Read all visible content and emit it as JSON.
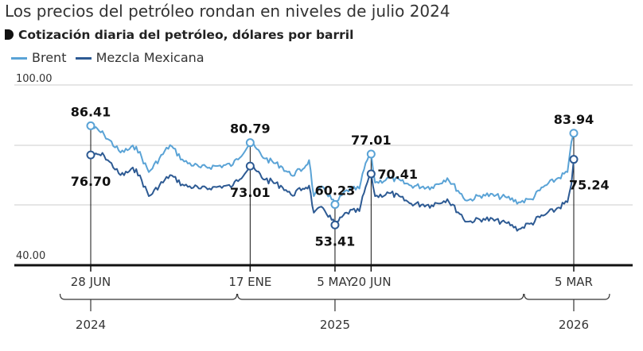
{
  "title": "Los precios del petróleo rondan en niveles de julio 2024",
  "subtitle": "Cotización diaria del petróleo, dólares por barril",
  "chart_data": {
    "type": "line",
    "title": "Los precios del petróleo rondan en niveles de julio 2024",
    "subtitle": "Cotización diaria del petróleo, dólares por barril",
    "ylabel": "dólares por barril",
    "ylim": [
      40,
      100
    ],
    "y_ticks": [
      {
        "value": 40,
        "label": "40.00"
      },
      {
        "value": 100,
        "label": "100.00"
      }
    ],
    "grid": true,
    "colors": {
      "brent": "#5aa3d6",
      "mezcla": "#2d5a93",
      "axis": "#111111",
      "grid": "#cccccc"
    },
    "x_domain": [
      "2024-06-28",
      "2026-03-05"
    ],
    "legend": [
      {
        "name": "Brent",
        "color": "#5aa3d6"
      },
      {
        "name": "Mezcla Mexicana",
        "color": "#2d5a93"
      }
    ],
    "series": [
      {
        "name": "Brent",
        "color": "#5aa3d6",
        "points": [
          [
            "2024-06-28",
            86.41
          ],
          [
            "2024-07-15",
            83.5
          ],
          [
            "2024-08-05",
            77.5
          ],
          [
            "2024-08-25",
            79.5
          ],
          [
            "2024-09-10",
            71.0
          ],
          [
            "2024-10-07",
            80.0
          ],
          [
            "2024-10-25",
            74.5
          ],
          [
            "2024-11-15",
            72.5
          ],
          [
            "2024-12-05",
            73.0
          ],
          [
            "2024-12-26",
            73.5
          ],
          [
            "2025-01-17",
            80.79
          ],
          [
            "2025-02-05",
            75.5
          ],
          [
            "2025-02-25",
            73.0
          ],
          [
            "2025-03-10",
            70.0
          ],
          [
            "2025-03-25",
            72.0
          ],
          [
            "2025-04-02",
            75.0
          ],
          [
            "2025-04-08",
            63.0
          ],
          [
            "2025-04-20",
            66.0
          ],
          [
            "2025-05-05",
            60.23
          ],
          [
            "2025-05-20",
            65.0
          ],
          [
            "2025-06-05",
            65.5
          ],
          [
            "2025-06-13",
            74.0
          ],
          [
            "2025-06-20",
            77.01
          ],
          [
            "2025-06-25",
            67.5
          ],
          [
            "2025-07-15",
            69.0
          ],
          [
            "2025-08-10",
            66.5
          ],
          [
            "2025-09-05",
            66.0
          ],
          [
            "2025-09-25",
            69.0
          ],
          [
            "2025-10-20",
            61.5
          ],
          [
            "2025-11-10",
            63.5
          ],
          [
            "2025-12-10",
            62.5
          ],
          [
            "2025-12-25",
            61.0
          ],
          [
            "2026-01-10",
            62.0
          ],
          [
            "2026-01-25",
            66.0
          ],
          [
            "2026-02-10",
            68.5
          ],
          [
            "2026-02-25",
            71.0
          ],
          [
            "2026-03-02",
            81.0
          ],
          [
            "2026-03-05",
            83.94
          ]
        ]
      },
      {
        "name": "Mezcla Mexicana",
        "color": "#2d5a93",
        "points": [
          [
            "2024-06-28",
            76.7
          ],
          [
            "2024-07-15",
            76.5
          ],
          [
            "2024-08-05",
            70.0
          ],
          [
            "2024-08-25",
            72.0
          ],
          [
            "2024-09-10",
            63.0
          ],
          [
            "2024-10-07",
            70.0
          ],
          [
            "2024-10-25",
            66.5
          ],
          [
            "2024-11-15",
            65.5
          ],
          [
            "2024-12-05",
            66.0
          ],
          [
            "2024-12-26",
            66.5
          ],
          [
            "2025-01-17",
            73.01
          ],
          [
            "2025-02-05",
            68.5
          ],
          [
            "2025-02-25",
            66.5
          ],
          [
            "2025-03-10",
            63.5
          ],
          [
            "2025-03-25",
            65.5
          ],
          [
            "2025-04-02",
            66.5
          ],
          [
            "2025-04-08",
            57.5
          ],
          [
            "2025-04-20",
            59.0
          ],
          [
            "2025-05-05",
            53.41
          ],
          [
            "2025-05-20",
            57.5
          ],
          [
            "2025-06-05",
            58.0
          ],
          [
            "2025-06-13",
            66.0
          ],
          [
            "2025-06-20",
            70.41
          ],
          [
            "2025-06-25",
            63.0
          ],
          [
            "2025-07-15",
            64.0
          ],
          [
            "2025-08-10",
            60.5
          ],
          [
            "2025-09-05",
            60.0
          ],
          [
            "2025-09-25",
            62.0
          ],
          [
            "2025-10-20",
            54.5
          ],
          [
            "2025-11-10",
            55.5
          ],
          [
            "2025-12-10",
            54.0
          ],
          [
            "2025-12-25",
            52.0
          ],
          [
            "2026-01-10",
            54.0
          ],
          [
            "2026-01-25",
            56.5
          ],
          [
            "2026-02-10",
            58.5
          ],
          [
            "2026-02-25",
            61.0
          ],
          [
            "2026-03-02",
            67.0
          ],
          [
            "2026-03-05",
            75.24
          ]
        ]
      }
    ],
    "markers": [
      {
        "date": "2024-06-28",
        "date_label": "28 JUN",
        "brent": {
          "value": 86.41,
          "label": "86.41",
          "pos": "above"
        },
        "mezcla": {
          "value": 76.7,
          "label": "76.70",
          "pos": "below"
        }
      },
      {
        "date": "2025-01-17",
        "date_label": "17 ENE",
        "brent": {
          "value": 80.79,
          "label": "80.79",
          "pos": "above"
        },
        "mezcla": {
          "value": 73.01,
          "label": "73.01",
          "pos": "below"
        }
      },
      {
        "date": "2025-05-05",
        "date_label": "5 MAY",
        "brent": {
          "value": 60.23,
          "label": "60.23",
          "pos": "above"
        },
        "mezcla": {
          "value": 53.41,
          "label": "53.41",
          "pos": "below"
        }
      },
      {
        "date": "2025-06-20",
        "date_label": "20 JUN",
        "brent": {
          "value": 77.01,
          "label": "77.01",
          "pos": "above"
        },
        "mezcla": {
          "value": 70.41,
          "label": "70.41",
          "pos": "right"
        }
      },
      {
        "date": "2026-03-05",
        "date_label": "5 MAR",
        "brent": {
          "value": 83.94,
          "label": "83.94",
          "pos": "above"
        },
        "mezcla": {
          "value": 75.24,
          "label": "75.24",
          "pos": "left"
        }
      }
    ],
    "years": [
      {
        "label": "2024",
        "date": "2024-06-28",
        "bracket": [
          "2024-05-20",
          "2024-12-31"
        ]
      },
      {
        "label": "2025",
        "date": "2025-05-05",
        "bracket": [
          "2025-01-01",
          "2025-12-31"
        ]
      },
      {
        "label": "2026",
        "date": "2026-03-05",
        "bracket": [
          "2026-01-01",
          "2026-04-20"
        ]
      }
    ]
  }
}
